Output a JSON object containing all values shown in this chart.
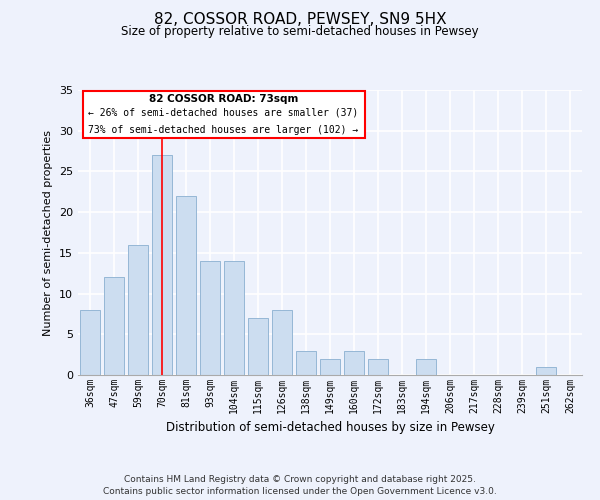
{
  "title_line1": "82, COSSOR ROAD, PEWSEY, SN9 5HX",
  "title_line2": "Size of property relative to semi-detached houses in Pewsey",
  "xlabel": "Distribution of semi-detached houses by size in Pewsey",
  "ylabel": "Number of semi-detached properties",
  "bar_labels": [
    "36sqm",
    "47sqm",
    "59sqm",
    "70sqm",
    "81sqm",
    "93sqm",
    "104sqm",
    "115sqm",
    "126sqm",
    "138sqm",
    "149sqm",
    "160sqm",
    "172sqm",
    "183sqm",
    "194sqm",
    "206sqm",
    "217sqm",
    "228sqm",
    "239sqm",
    "251sqm",
    "262sqm"
  ],
  "bar_values": [
    8,
    12,
    16,
    27,
    22,
    14,
    14,
    7,
    8,
    3,
    2,
    3,
    2,
    0,
    2,
    0,
    0,
    0,
    0,
    1,
    0
  ],
  "bar_color": "#ccddf0",
  "bar_edge_color": "#8aafd0",
  "red_line_x": 3,
  "annotation_title": "82 COSSOR ROAD: 73sqm",
  "annotation_line1": "← 26% of semi-detached houses are smaller (37)",
  "annotation_line2": "73% of semi-detached houses are larger (102) →",
  "ylim": [
    0,
    35
  ],
  "yticks": [
    0,
    5,
    10,
    15,
    20,
    25,
    30,
    35
  ],
  "background_color": "#eef2fc",
  "plot_bg_color": "#eef2fc",
  "footer_line1": "Contains HM Land Registry data © Crown copyright and database right 2025.",
  "footer_line2": "Contains public sector information licensed under the Open Government Licence v3.0."
}
